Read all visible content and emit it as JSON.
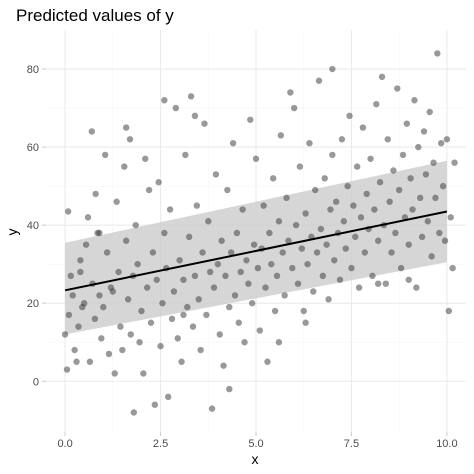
{
  "chart_data": {
    "type": "scatter",
    "title": "Predicted values of y",
    "xlabel": "x",
    "ylabel": "y",
    "xlim": [
      -0.5,
      10.5
    ],
    "ylim": [
      -13,
      90
    ],
    "x_ticks": [
      0,
      2.5,
      5,
      7.5,
      10
    ],
    "x_tick_labels": [
      "0.0",
      "2.5",
      "5.0",
      "7.5",
      "10.0"
    ],
    "y_ticks": [
      0,
      20,
      40,
      60,
      80
    ],
    "y_tick_labels": [
      "0",
      "20",
      "40",
      "60",
      "80"
    ],
    "grid": true,
    "legend": "none",
    "fit_line": {
      "x": [
        0,
        10
      ],
      "y": [
        23.3,
        43.5
      ]
    },
    "confidence_band": {
      "x": [
        0,
        10
      ],
      "lower": [
        12,
        30.5
      ],
      "upper": [
        35.5,
        56.5
      ]
    },
    "point_color": "#333333",
    "line_color": "#000000",
    "band_color": "#cccccc",
    "points": [
      {
        "x": 0.0,
        "y": 12
      },
      {
        "x": 0.05,
        "y": 3
      },
      {
        "x": 0.08,
        "y": 43.5
      },
      {
        "x": 0.1,
        "y": 17
      },
      {
        "x": 0.15,
        "y": 27
      },
      {
        "x": 0.2,
        "y": 22
      },
      {
        "x": 0.25,
        "y": 8
      },
      {
        "x": 0.3,
        "y": 5
      },
      {
        "x": 0.35,
        "y": 14
      },
      {
        "x": 0.4,
        "y": 31
      },
      {
        "x": 0.45,
        "y": 19
      },
      {
        "x": 0.5,
        "y": 20
      },
      {
        "x": 0.55,
        "y": 35
      },
      {
        "x": 0.6,
        "y": 42
      },
      {
        "x": 0.65,
        "y": 5
      },
      {
        "x": 0.7,
        "y": 64
      },
      {
        "x": 0.72,
        "y": 25
      },
      {
        "x": 0.78,
        "y": 16
      },
      {
        "x": 0.8,
        "y": 48
      },
      {
        "x": 0.85,
        "y": 38
      },
      {
        "x": 0.9,
        "y": 22
      },
      {
        "x": 0.95,
        "y": 11
      },
      {
        "x": 1.0,
        "y": 19
      },
      {
        "x": 1.05,
        "y": 58
      },
      {
        "x": 1.1,
        "y": 33
      },
      {
        "x": 1.15,
        "y": 7
      },
      {
        "x": 1.2,
        "y": 24
      },
      {
        "x": 1.25,
        "y": 23
      },
      {
        "x": 1.3,
        "y": 2
      },
      {
        "x": 1.35,
        "y": 46
      },
      {
        "x": 1.4,
        "y": 28
      },
      {
        "x": 1.45,
        "y": 14
      },
      {
        "x": 1.5,
        "y": 8
      },
      {
        "x": 1.55,
        "y": 55
      },
      {
        "x": 1.6,
        "y": 36
      },
      {
        "x": 1.65,
        "y": 21
      },
      {
        "x": 1.7,
        "y": 62
      },
      {
        "x": 1.72,
        "y": 12
      },
      {
        "x": 1.78,
        "y": 27
      },
      {
        "x": 1.8,
        "y": -8
      },
      {
        "x": 1.85,
        "y": 40
      },
      {
        "x": 1.9,
        "y": 30
      },
      {
        "x": 1.95,
        "y": 10
      },
      {
        "x": 2.0,
        "y": 18
      },
      {
        "x": 2.05,
        "y": 2
      },
      {
        "x": 2.1,
        "y": 57
      },
      {
        "x": 2.15,
        "y": 24
      },
      {
        "x": 2.2,
        "y": 49
      },
      {
        "x": 2.25,
        "y": 15
      },
      {
        "x": 2.3,
        "y": 33
      },
      {
        "x": 2.35,
        "y": -6
      },
      {
        "x": 2.4,
        "y": 26
      },
      {
        "x": 2.45,
        "y": 51
      },
      {
        "x": 2.5,
        "y": 9
      },
      {
        "x": 2.55,
        "y": 20
      },
      {
        "x": 2.6,
        "y": 38
      },
      {
        "x": 2.65,
        "y": 29
      },
      {
        "x": 2.7,
        "y": -4
      },
      {
        "x": 2.75,
        "y": 44
      },
      {
        "x": 2.8,
        "y": 16
      },
      {
        "x": 2.85,
        "y": 23
      },
      {
        "x": 2.9,
        "y": 70
      },
      {
        "x": 2.95,
        "y": 11
      },
      {
        "x": 3.0,
        "y": 31
      },
      {
        "x": 3.05,
        "y": 5
      },
      {
        "x": 3.1,
        "y": 26
      },
      {
        "x": 3.15,
        "y": 58
      },
      {
        "x": 3.2,
        "y": 19
      },
      {
        "x": 3.25,
        "y": 37
      },
      {
        "x": 3.3,
        "y": 73
      },
      {
        "x": 3.35,
        "y": 14
      },
      {
        "x": 3.4,
        "y": 27
      },
      {
        "x": 3.45,
        "y": 45
      },
      {
        "x": 3.5,
        "y": 21
      },
      {
        "x": 3.55,
        "y": 8
      },
      {
        "x": 3.6,
        "y": 33
      },
      {
        "x": 3.65,
        "y": 66
      },
      {
        "x": 3.7,
        "y": 17
      },
      {
        "x": 3.75,
        "y": 41
      },
      {
        "x": 3.8,
        "y": 28
      },
      {
        "x": 3.85,
        "y": -7
      },
      {
        "x": 3.9,
        "y": 24
      },
      {
        "x": 3.95,
        "y": 53
      },
      {
        "x": 4.0,
        "y": 30
      },
      {
        "x": 4.05,
        "y": 12
      },
      {
        "x": 4.1,
        "y": 36
      },
      {
        "x": 4.15,
        "y": 4
      },
      {
        "x": 4.2,
        "y": 27
      },
      {
        "x": 4.25,
        "y": 49
      },
      {
        "x": 4.3,
        "y": 19
      },
      {
        "x": 4.35,
        "y": 33
      },
      {
        "x": 4.4,
        "y": 61
      },
      {
        "x": 4.45,
        "y": 22
      },
      {
        "x": 4.5,
        "y": 38
      },
      {
        "x": 4.55,
        "y": 15
      },
      {
        "x": 4.6,
        "y": 28
      },
      {
        "x": 4.65,
        "y": 44
      },
      {
        "x": 4.7,
        "y": 10
      },
      {
        "x": 4.75,
        "y": 31
      },
      {
        "x": 4.8,
        "y": 25
      },
      {
        "x": 4.85,
        "y": 67
      },
      {
        "x": 4.9,
        "y": 20
      },
      {
        "x": 4.95,
        "y": 35
      },
      {
        "x": 5.0,
        "y": 57
      },
      {
        "x": 5.05,
        "y": 29
      },
      {
        "x": 5.1,
        "y": 13
      },
      {
        "x": 5.15,
        "y": 34
      },
      {
        "x": 5.2,
        "y": 45
      },
      {
        "x": 5.25,
        "y": 24
      },
      {
        "x": 5.3,
        "y": 5
      },
      {
        "x": 5.35,
        "y": 38
      },
      {
        "x": 5.4,
        "y": 30
      },
      {
        "x": 5.45,
        "y": 52
      },
      {
        "x": 5.5,
        "y": 18
      },
      {
        "x": 5.55,
        "y": 27
      },
      {
        "x": 5.6,
        "y": 41
      },
      {
        "x": 5.65,
        "y": 63
      },
      {
        "x": 5.7,
        "y": 33
      },
      {
        "x": 5.75,
        "y": 22
      },
      {
        "x": 5.8,
        "y": 47
      },
      {
        "x": 5.85,
        "y": 36
      },
      {
        "x": 5.9,
        "y": 74
      },
      {
        "x": 5.95,
        "y": 29
      },
      {
        "x": 6.0,
        "y": 70
      },
      {
        "x": 6.05,
        "y": 40
      },
      {
        "x": 6.1,
        "y": 25
      },
      {
        "x": 6.15,
        "y": 55
      },
      {
        "x": 6.2,
        "y": 34
      },
      {
        "x": 6.25,
        "y": 18
      },
      {
        "x": 6.3,
        "y": 43
      },
      {
        "x": 6.35,
        "y": 30
      },
      {
        "x": 6.4,
        "y": 61
      },
      {
        "x": 6.45,
        "y": 37
      },
      {
        "x": 6.5,
        "y": 23
      },
      {
        "x": 6.55,
        "y": 49
      },
      {
        "x": 6.6,
        "y": 33
      },
      {
        "x": 6.65,
        "y": 77
      },
      {
        "x": 6.7,
        "y": 39
      },
      {
        "x": 6.75,
        "y": 27
      },
      {
        "x": 6.8,
        "y": 52
      },
      {
        "x": 6.85,
        "y": 35
      },
      {
        "x": 6.9,
        "y": 21
      },
      {
        "x": 6.95,
        "y": 44
      },
      {
        "x": 7.0,
        "y": 58
      },
      {
        "x": 7.05,
        "y": 31
      },
      {
        "x": 7.1,
        "y": 46
      },
      {
        "x": 7.15,
        "y": 38
      },
      {
        "x": 7.2,
        "y": 26
      },
      {
        "x": 7.25,
        "y": 62
      },
      {
        "x": 7.3,
        "y": 41
      },
      {
        "x": 7.35,
        "y": 34
      },
      {
        "x": 7.4,
        "y": 50
      },
      {
        "x": 7.45,
        "y": 68
      },
      {
        "x": 7.5,
        "y": 29
      },
      {
        "x": 7.55,
        "y": 45
      },
      {
        "x": 7.6,
        "y": 37
      },
      {
        "x": 7.65,
        "y": 55
      },
      {
        "x": 7.7,
        "y": 24
      },
      {
        "x": 7.75,
        "y": 42
      },
      {
        "x": 7.8,
        "y": 65
      },
      {
        "x": 7.85,
        "y": 33
      },
      {
        "x": 7.9,
        "y": 48
      },
      {
        "x": 7.95,
        "y": 39
      },
      {
        "x": 8.0,
        "y": 57
      },
      {
        "x": 8.05,
        "y": 27
      },
      {
        "x": 8.1,
        "y": 44
      },
      {
        "x": 8.15,
        "y": 71
      },
      {
        "x": 8.2,
        "y": 36
      },
      {
        "x": 8.25,
        "y": 51
      },
      {
        "x": 8.3,
        "y": 78
      },
      {
        "x": 8.35,
        "y": 40
      },
      {
        "x": 8.4,
        "y": 25
      },
      {
        "x": 8.45,
        "y": 62
      },
      {
        "x": 8.5,
        "y": 46
      },
      {
        "x": 8.55,
        "y": 33
      },
      {
        "x": 8.6,
        "y": 54
      },
      {
        "x": 8.65,
        "y": 38
      },
      {
        "x": 8.7,
        "y": 75
      },
      {
        "x": 8.75,
        "y": 49
      },
      {
        "x": 8.8,
        "y": 29
      },
      {
        "x": 8.85,
        "y": 58
      },
      {
        "x": 8.9,
        "y": 42
      },
      {
        "x": 8.95,
        "y": 66
      },
      {
        "x": 9.0,
        "y": 35
      },
      {
        "x": 9.05,
        "y": 52
      },
      {
        "x": 9.1,
        "y": 44
      },
      {
        "x": 9.15,
        "y": 72
      },
      {
        "x": 9.2,
        "y": 24
      },
      {
        "x": 9.25,
        "y": 60
      },
      {
        "x": 9.3,
        "y": 47
      },
      {
        "x": 9.35,
        "y": 37
      },
      {
        "x": 9.4,
        "y": 64
      },
      {
        "x": 9.45,
        "y": 53
      },
      {
        "x": 9.5,
        "y": 41
      },
      {
        "x": 9.55,
        "y": 69
      },
      {
        "x": 9.6,
        "y": 32
      },
      {
        "x": 9.65,
        "y": 56
      },
      {
        "x": 9.7,
        "y": 47
      },
      {
        "x": 9.75,
        "y": 84
      },
      {
        "x": 9.8,
        "y": 38
      },
      {
        "x": 9.85,
        "y": 61
      },
      {
        "x": 9.9,
        "y": 50
      },
      {
        "x": 9.95,
        "y": 36
      },
      {
        "x": 10.0,
        "y": 62
      },
      {
        "x": 10.05,
        "y": 18
      },
      {
        "x": 10.1,
        "y": 42
      },
      {
        "x": 10.15,
        "y": 29
      },
      {
        "x": 10.2,
        "y": 56
      },
      {
        "x": 9.0,
        "y": 26
      },
      {
        "x": 8.2,
        "y": 25
      },
      {
        "x": 7.0,
        "y": 80
      },
      {
        "x": 6.3,
        "y": 15
      },
      {
        "x": 5.6,
        "y": 10
      },
      {
        "x": 4.3,
        "y": -2
      },
      {
        "x": 3.4,
        "y": 68
      },
      {
        "x": 2.6,
        "y": 72
      },
      {
        "x": 1.6,
        "y": 65
      },
      {
        "x": 0.9,
        "y": 38
      },
      {
        "x": 0.4,
        "y": 28
      },
      {
        "x": 3.1,
        "y": 17
      }
    ]
  }
}
